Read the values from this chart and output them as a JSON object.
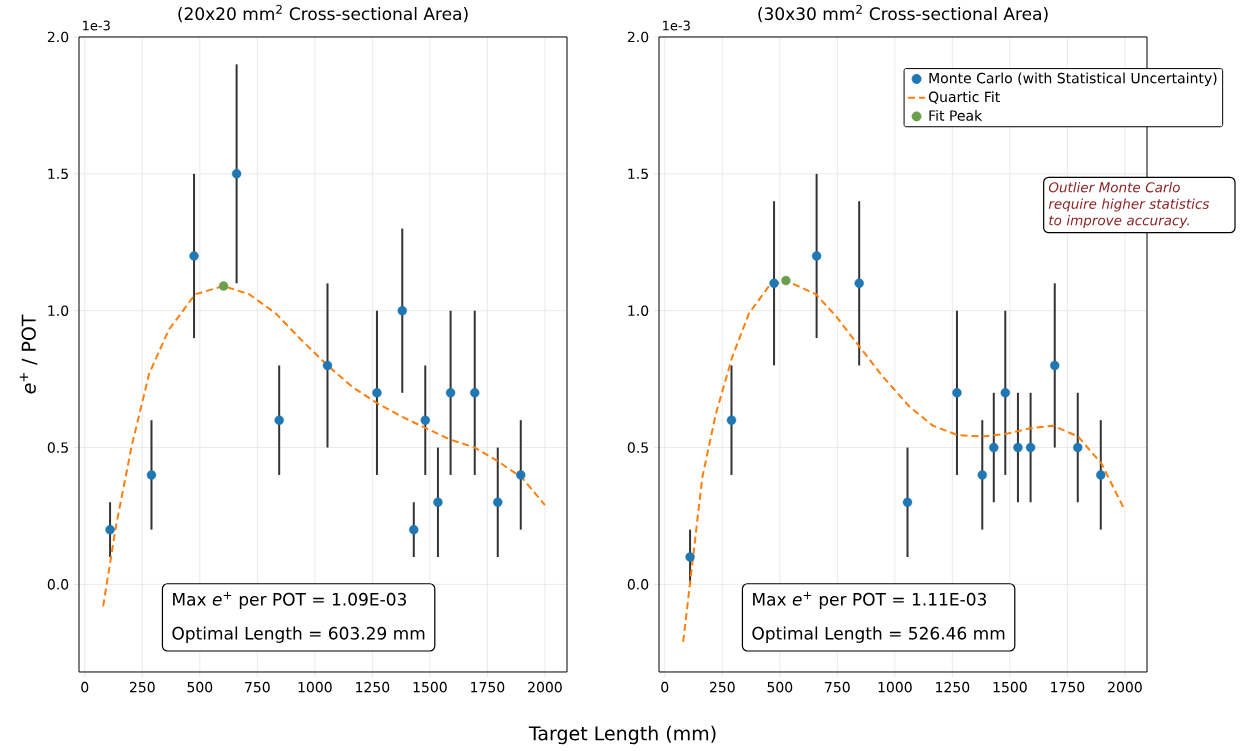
{
  "chart_data": [
    {
      "type": "scatter",
      "title": "(20x20 mm$^{2}$ Cross-sectional Area)",
      "xlabel": "Target Length (mm)",
      "ylabel": "*e*$^{+}$ / POT",
      "xlim": [
        -25,
        2096
      ],
      "ylim": [
        -0.32,
        2.0
      ],
      "xticks": [
        0,
        250,
        500,
        750,
        1000,
        1250,
        1500,
        1750,
        2000
      ],
      "yticks": [
        {
          "value": 0,
          "label": "0.0"
        },
        {
          "value": 0.5,
          "label": "0.5"
        },
        {
          "value": 1,
          "label": "1.0"
        },
        {
          "value": 1.5,
          "label": "1.5"
        },
        {
          "value": 2,
          "label": "2.0"
        }
      ],
      "grid": true,
      "series": [
        {
          "marker": "circle",
          "color": "#1f77b4",
          "x": [
            110,
            290,
            475,
            660,
            845,
            1055,
            1270,
            1380,
            1430,
            1480,
            1535,
            1590,
            1695,
            1795,
            1895
          ],
          "values": [
            0.2,
            0.4,
            1.2,
            1.5,
            0.6,
            0.8,
            0.7,
            1.0,
            0.2,
            0.6,
            0.3,
            0.7,
            0.7,
            0.3,
            0.4
          ],
          "errors": [
            0.1,
            0.2,
            0.3,
            0.4,
            0.2,
            0.3,
            0.3,
            0.3,
            0.1,
            0.2,
            0.2,
            0.3,
            0.3,
            0.2,
            0.2
          ]
        },
        {
          "type": "line",
          "marker": "none",
          "line_style": "dashed",
          "color": "#ff7f0e",
          "x": [
            80,
            135,
            205,
            280,
            365,
            480,
            603.29,
            715,
            830,
            945,
            1055,
            1165,
            1275,
            1385,
            1485,
            1585,
            1695,
            1795,
            1900,
            2000
          ],
          "values": [
            -0.08,
            0.21,
            0.51,
            0.77,
            0.93,
            1.06,
            1.09,
            1.06,
            0.99,
            0.89,
            0.8,
            0.72,
            0.66,
            0.61,
            0.57,
            0.53,
            0.5,
            0.45,
            0.39,
            0.29
          ]
        },
        {
          "marker": "circle",
          "color": "#6b9e4f",
          "x": [
            603.29
          ],
          "values": [
            1.09
          ]
        }
      ],
      "annotations": [
        "1e-3",
        "Max *e*$^{+}$ per POT = 1.09E-03",
        "Optimal Length = 603.29 mm"
      ]
    },
    {
      "type": "scatter",
      "title": "(30x30 mm$^{2}$ Cross-sectional Area)",
      "xlim": [
        -25,
        2096
      ],
      "ylim": [
        -0.32,
        2.0
      ],
      "xticks": [
        0,
        250,
        500,
        750,
        1000,
        1250,
        1500,
        1750,
        2000
      ],
      "yticks": [
        {
          "value": 0,
          "label": "0.0"
        },
        {
          "value": 0.5,
          "label": "0.5"
        },
        {
          "value": 1,
          "label": "1.0"
        },
        {
          "value": 1.5,
          "label": "1.5"
        },
        {
          "value": 2,
          "label": "2.0"
        }
      ],
      "grid": true,
      "legend": "top right",
      "series": [
        {
          "name": "Monte Carlo (with Statistical Uncertainty)",
          "marker": "circle",
          "color": "#1f77b4",
          "x": [
            110,
            290,
            475,
            660,
            845,
            1055,
            1270,
            1380,
            1430,
            1480,
            1535,
            1590,
            1695,
            1795,
            1895
          ],
          "values": [
            0.1,
            0.6,
            1.1,
            1.2,
            1.1,
            0.3,
            0.7,
            0.4,
            0.5,
            0.7,
            0.5,
            0.5,
            0.8,
            0.5,
            0.4
          ],
          "errors": [
            0.1,
            0.2,
            0.3,
            0.3,
            0.3,
            0.2,
            0.3,
            0.2,
            0.2,
            0.3,
            0.2,
            0.2,
            0.3,
            0.2,
            0.2
          ]
        },
        {
          "name": "Quartic Fit",
          "type": "line",
          "marker": "none",
          "line_style": "dashed",
          "color": "#ff7f0e",
          "x": [
            80,
            112,
            163,
            221,
            293,
            366,
            453,
            526.46,
            657,
            744,
            845,
            947,
            1063,
            1165,
            1274,
            1383,
            1484,
            1586,
            1688,
            1797,
            1899,
            2000
          ],
          "values": [
            -0.21,
            0.02,
            0.39,
            0.62,
            0.83,
            0.99,
            1.09,
            1.11,
            1.06,
            0.98,
            0.87,
            0.76,
            0.65,
            0.58,
            0.545,
            0.54,
            0.55,
            0.57,
            0.58,
            0.54,
            0.44,
            0.27
          ]
        },
        {
          "name": "Fit Peak",
          "marker": "circle",
          "color": "#6b9e4f",
          "x": [
            526.46
          ],
          "values": [
            1.11
          ]
        }
      ],
      "annotations": [
        "1e-3",
        "Max *e*$^{+}$ per POT = 1.11E-03",
        "Optimal Length = 526.46 mm",
        "*Outlier Monte Carlo require higher statistics to improve accuracy.*"
      ]
    }
  ]
}
